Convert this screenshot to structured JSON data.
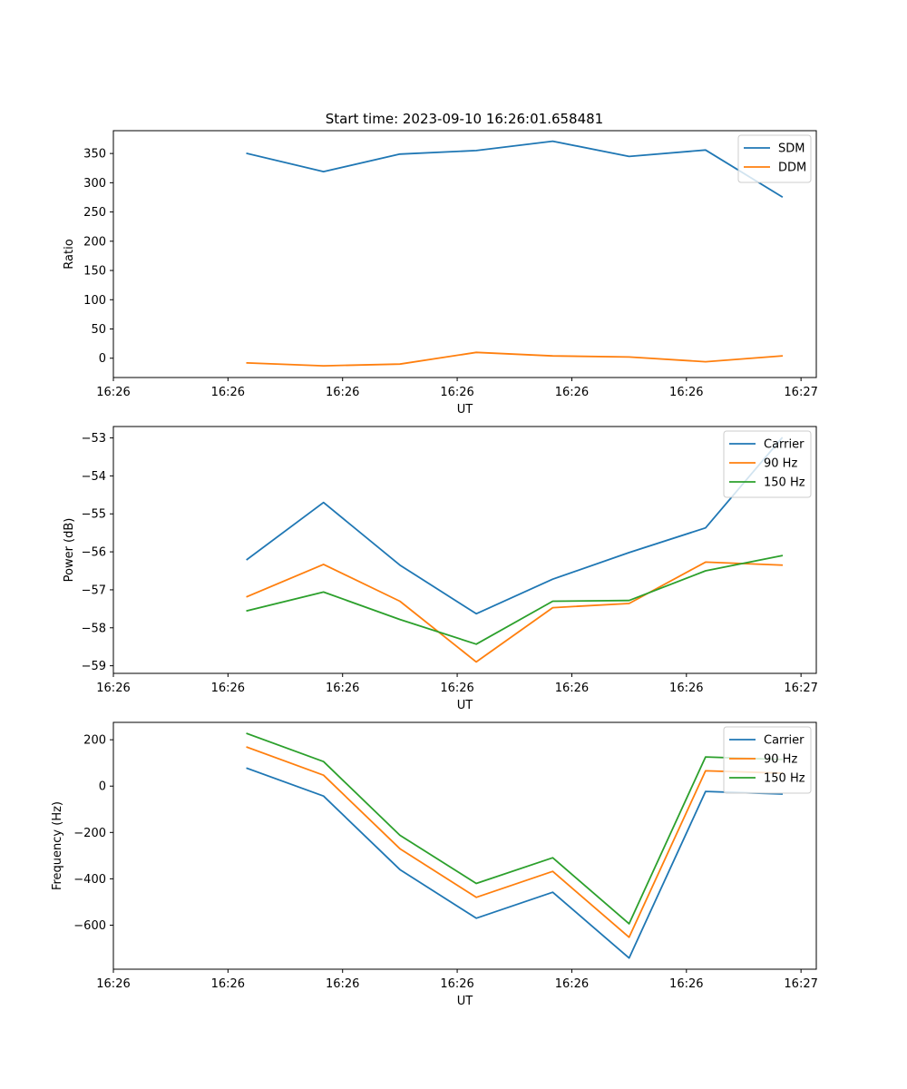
{
  "figure": {
    "title": "Start time: 2023-09-10 16:26:01.658481"
  },
  "chart_data": [
    {
      "type": "line",
      "title": "Start time: 2023-09-10 16:26:01.658481",
      "xlabel": "UT",
      "ylabel": "Ratio",
      "x": [
        1,
        2,
        3,
        4,
        5,
        6,
        7,
        8
      ],
      "xlim": [
        -0.75,
        8.45
      ],
      "xticks": [
        -0.75,
        0.75,
        2.25,
        3.75,
        5.25,
        6.75,
        8.25
      ],
      "xtick_labels": [
        "16:26",
        "16:26",
        "16:26",
        "16:26",
        "16:26",
        "16:26",
        "16:27"
      ],
      "ylim": [
        -33,
        389
      ],
      "yticks": [
        0,
        50,
        100,
        150,
        200,
        250,
        300,
        350
      ],
      "legend": "top-right",
      "series": [
        {
          "name": "SDM",
          "color": "#1f77b4",
          "values": [
            350,
            319,
            349,
            355,
            371,
            345,
            356,
            276
          ]
        },
        {
          "name": "DDM",
          "color": "#ff7f0e",
          "values": [
            -8,
            -13,
            -10,
            10,
            4,
            2,
            -6,
            4
          ]
        }
      ]
    },
    {
      "type": "line",
      "title": "",
      "xlabel": "UT",
      "ylabel": "Power (dB)",
      "x": [
        1,
        2,
        3,
        4,
        5,
        6,
        7,
        8
      ],
      "xlim": [
        -0.75,
        8.45
      ],
      "xticks": [
        -0.75,
        0.75,
        2.25,
        3.75,
        5.25,
        6.75,
        8.25
      ],
      "xtick_labels": [
        "16:26",
        "16:26",
        "16:26",
        "16:26",
        "16:26",
        "16:26",
        "16:27"
      ],
      "ylim": [
        -59.2,
        -52.7
      ],
      "yticks": [
        -59,
        -58,
        -57,
        -56,
        -55,
        -54,
        -53
      ],
      "ytick_labels": [
        "−59",
        "−58",
        "−57",
        "−56",
        "−55",
        "−54",
        "−53"
      ],
      "legend": "top-right",
      "series": [
        {
          "name": "Carrier",
          "color": "#1f77b4",
          "values": [
            -56.2,
            -54.7,
            -56.35,
            -57.63,
            -56.72,
            -56.02,
            -55.37,
            -53.0
          ]
        },
        {
          "name": "90 Hz",
          "color": "#ff7f0e",
          "values": [
            -57.18,
            -56.33,
            -57.3,
            -58.9,
            -57.47,
            -57.36,
            -56.27,
            -56.35
          ]
        },
        {
          "name": "150 Hz",
          "color": "#2ca02c",
          "values": [
            -57.55,
            -57.06,
            -57.78,
            -58.43,
            -57.3,
            -57.28,
            -56.5,
            -56.1
          ]
        }
      ]
    },
    {
      "type": "line",
      "title": "",
      "xlabel": "UT",
      "ylabel": "Frequency (Hz)",
      "x": [
        1,
        2,
        3,
        4,
        5,
        6,
        7,
        8
      ],
      "xlim": [
        -0.75,
        8.45
      ],
      "xticks": [
        -0.75,
        0.75,
        2.25,
        3.75,
        5.25,
        6.75,
        8.25
      ],
      "xtick_labels": [
        "16:26",
        "16:26",
        "16:26",
        "16:26",
        "16:26",
        "16:26",
        "16:27"
      ],
      "ylim": [
        -790,
        275
      ],
      "yticks": [
        -600,
        -400,
        -200,
        0,
        200
      ],
      "ytick_labels": [
        "−600",
        "−400",
        "−200",
        "0",
        "200"
      ],
      "legend": "top-right",
      "series": [
        {
          "name": "Carrier",
          "color": "#1f77b4",
          "values": [
            77,
            -43,
            -360,
            -570,
            -458,
            -742,
            -23,
            -34
          ]
        },
        {
          "name": "90 Hz",
          "color": "#ff7f0e",
          "values": [
            168,
            47,
            -270,
            -480,
            -368,
            -652,
            66,
            56
          ]
        },
        {
          "name": "150 Hz",
          "color": "#2ca02c",
          "values": [
            227,
            106,
            -212,
            -420,
            -309,
            -594,
            126,
            115
          ]
        }
      ]
    }
  ]
}
